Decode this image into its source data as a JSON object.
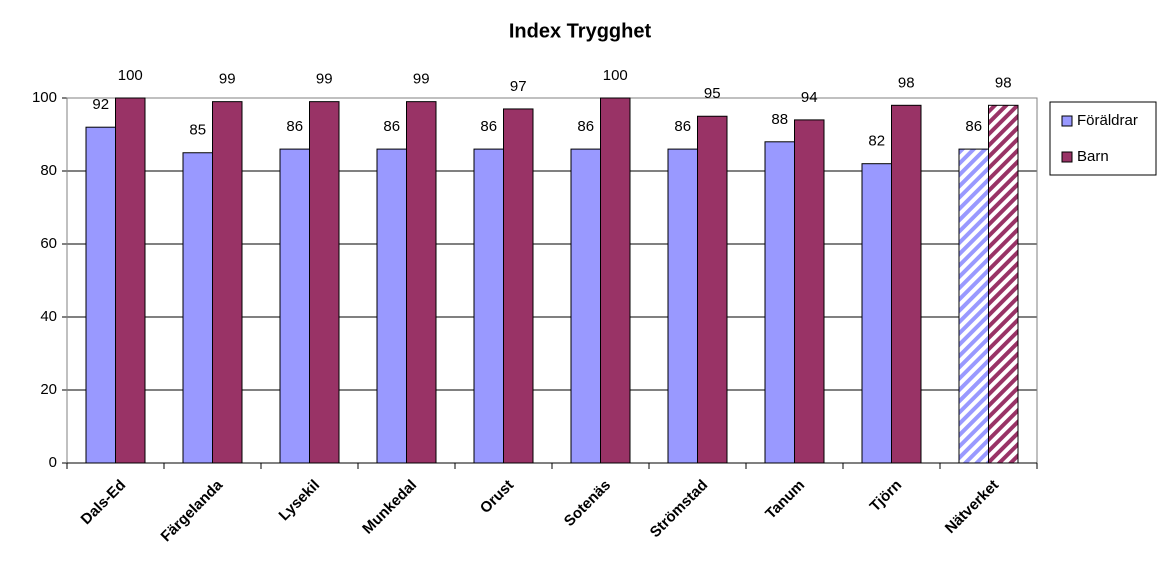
{
  "chart_data": {
    "type": "bar",
    "title": "Index Trygghet",
    "categories": [
      "Dals-Ed",
      "Färgelanda",
      "Lysekil",
      "Munkedal",
      "Orust",
      "Sotenäs",
      "Strömstad",
      "Tanum",
      "Tjörn",
      "Nätverket"
    ],
    "series": [
      {
        "name": "Föräldrar",
        "color": "#9999ff",
        "values": [
          92,
          85,
          86,
          86,
          86,
          86,
          86,
          88,
          82,
          86
        ]
      },
      {
        "name": "Barn",
        "color": "#993366",
        "values": [
          100,
          99,
          99,
          99,
          97,
          100,
          95,
          94,
          98,
          98
        ]
      }
    ],
    "hatched": [
      false,
      false,
      false,
      false,
      false,
      false,
      false,
      false,
      false,
      true
    ],
    "ylim": [
      0,
      100
    ],
    "yticks": [
      0,
      20,
      40,
      60,
      80,
      100
    ],
    "grid": true,
    "legend": "right"
  }
}
